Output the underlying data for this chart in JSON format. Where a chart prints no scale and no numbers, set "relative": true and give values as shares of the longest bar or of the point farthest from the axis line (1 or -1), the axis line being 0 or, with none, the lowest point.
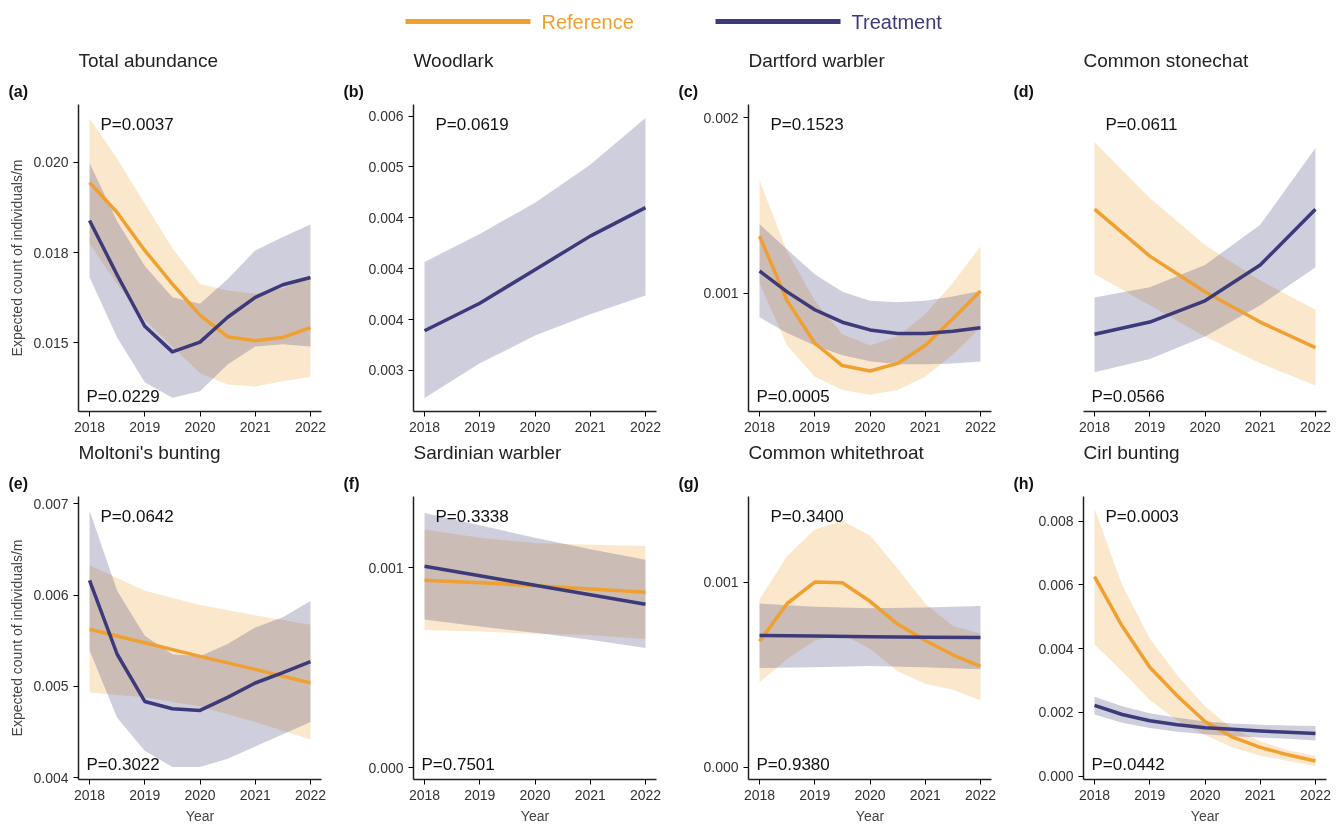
{
  "chart_data": [
    {
      "type": "line",
      "title": "Total abundance",
      "ylabel": "Expected count of individuals/m",
      "legend": "top",
      "annotations": [
        "(a)",
        "P=0.0037",
        "P=0.0229"
      ],
      "x": [
        2018,
        2018.5,
        2019,
        2019.5,
        2020,
        2020.5,
        2021,
        2021.5,
        2022
      ],
      "xlim": [
        2017.8,
        2022.2
      ],
      "xticks": [
        2018,
        2019,
        2020,
        2021,
        2022
      ],
      "ylim": [
        0.0131,
        0.0216
      ],
      "yticks": [
        {
          "value": 0.015,
          "label": "0.015"
        },
        {
          "value": 0.0175,
          "label": "0.018"
        },
        {
          "value": 0.02,
          "label": "0.020"
        }
      ],
      "series": [
        {
          "name": "Reference",
          "color": "#f0a030",
          "values": [
            0.01944,
            0.01861,
            0.01756,
            0.01663,
            0.01577,
            0.01517,
            0.01506,
            0.01515,
            0.01542
          ],
          "lower": [
            0.01775,
            0.01663,
            0.01564,
            0.0149,
            0.01416,
            0.01385,
            0.01379,
            0.01394,
            0.01406
          ],
          "upper": [
            0.02121,
            0.0201,
            0.01886,
            0.01762,
            0.01663,
            0.01645,
            0.01636,
            0.01651,
            0.01682
          ]
        },
        {
          "name": "Treatment",
          "color": "#3c3a78",
          "values": [
            0.01839,
            0.01688,
            0.01546,
            0.01475,
            0.01502,
            0.01571,
            0.01626,
            0.01661,
            0.01681
          ],
          "lower": [
            0.01682,
            0.01515,
            0.01391,
            0.01348,
            0.01366,
            0.0144,
            0.0149,
            0.01496,
            0.0149
          ],
          "upper": [
            0.01998,
            0.01837,
            0.01713,
            0.01626,
            0.01608,
            0.01676,
            0.01756,
            0.01793,
            0.01828
          ]
        }
      ]
    },
    {
      "type": "line",
      "title": "Woodlark",
      "annotations": [
        "(b)",
        "P=0.0619"
      ],
      "x": [
        2018,
        2019,
        2020,
        2021,
        2022
      ],
      "xlim": [
        2017.8,
        2022.2
      ],
      "xticks": [
        2018,
        2019,
        2020,
        2021,
        2022
      ],
      "ylim": [
        0.002596,
        0.005614
      ],
      "yticks": [
        {
          "value": 0.003,
          "label": "0.003"
        },
        {
          "value": 0.0035,
          "label": "0.004"
        },
        {
          "value": 0.004,
          "label": "0.004"
        },
        {
          "value": 0.0045,
          "label": "0.004"
        },
        {
          "value": 0.005,
          "label": "0.005"
        },
        {
          "value": 0.0055,
          "label": "0.006"
        }
      ],
      "series": [
        {
          "color": "#3c3a78",
          "values": [
            0.00339,
            0.00366,
            0.00399,
            0.00432,
            0.0046
          ],
          "lower": [
            0.002728,
            0.00307,
            0.003342,
            0.003553,
            0.003737
          ],
          "upper": [
            0.004066,
            0.004342,
            0.004649,
            0.005022,
            0.005482
          ]
        }
      ]
    },
    {
      "type": "line",
      "title": "Dartford warbler",
      "annotations": [
        "(c)",
        "P=0.1523",
        "P=0.0005"
      ],
      "x": [
        2018,
        2018.5,
        2019,
        2019.5,
        2020,
        2020.5,
        2021,
        2021.5,
        2022
      ],
      "xlim": [
        2017.8,
        2022.2
      ],
      "xticks": [
        2018,
        2019,
        2020,
        2021,
        2022
      ],
      "ylim": [
        0.000326,
        0.002076
      ],
      "yticks": [
        {
          "value": 0.001,
          "label": "0.001"
        },
        {
          "value": 0.002,
          "label": "0.002"
        }
      ],
      "series": [
        {
          "color": "#f0a030",
          "values": [
            0.001326,
            0.000957,
            0.000715,
            0.000588,
            0.000557,
            0.0006,
            0.000702,
            0.000855,
            0.001013
          ],
          "lower": [
            0.001059,
            0.000702,
            0.000524,
            0.000448,
            0.000422,
            0.000448,
            0.000524,
            0.000651,
            0.000804
          ],
          "upper": [
            0.001644,
            0.001237,
            0.000957,
            0.000766,
            0.000702,
            0.000753,
            0.00088,
            0.001059,
            0.001267
          ]
        },
        {
          "color": "#3c3a78",
          "values": [
            0.001127,
            0.001008,
            0.000906,
            0.000835,
            0.000791,
            0.000771,
            0.000771,
            0.000784,
            0.000804
          ],
          "lower": [
            0.000863,
            0.000774,
            0.000702,
            0.000646,
            0.000613,
            0.000595,
            0.000595,
            0.0006,
            0.000611
          ],
          "upper": [
            0.001394,
            0.001249,
            0.001109,
            0.001008,
            0.000957,
            0.000949,
            0.000957,
            0.000982,
            0.001013
          ]
        }
      ]
    },
    {
      "type": "line",
      "title": "Common stonechat",
      "relative": true,
      "annotations": [
        "(d)",
        "P=0.0611",
        "P=0.0566"
      ],
      "x": [
        2018,
        2019,
        2020,
        2021,
        2022
      ],
      "xlim": [
        2017.8,
        2022.2
      ],
      "xticks": [
        2018,
        2019,
        2020,
        2021,
        2022
      ],
      "series": [
        {
          "color": "#f0a030",
          "values": [
            1.0,
            0.768,
            0.592,
            0.442,
            0.316
          ],
          "lower": [
            0.68,
            0.525,
            0.371,
            0.238,
            0.128
          ],
          "upper": [
            1.331,
            1.055,
            0.823,
            0.647,
            0.503
          ]
        },
        {
          "color": "#3c3a78",
          "values": [
            0.382,
            0.442,
            0.547,
            0.724,
            1.0
          ],
          "lower": [
            0.194,
            0.26,
            0.371,
            0.525,
            0.713
          ],
          "upper": [
            0.563,
            0.614,
            0.724,
            0.923,
            1.302
          ]
        }
      ]
    },
    {
      "type": "line",
      "title": "Moltoni's bunting",
      "xlabel": "Year",
      "ylabel": "Expected count of individuals/m",
      "annotations": [
        "(e)",
        "P=0.0642",
        "P=0.3022"
      ],
      "x": [
        2018,
        2018.5,
        2019,
        2019.5,
        2020,
        2020.5,
        2021,
        2021.5,
        2022
      ],
      "xlim": [
        2017.8,
        2022.2
      ],
      "xticks": [
        2018,
        2019,
        2020,
        2021,
        2022
      ],
      "ylim": [
        0.00398,
        0.00708
      ],
      "yticks": [
        {
          "value": 0.004,
          "label": "0.004"
        },
        {
          "value": 0.005,
          "label": "0.005"
        },
        {
          "value": 0.006,
          "label": "0.006"
        },
        {
          "value": 0.007,
          "label": "0.007"
        }
      ],
      "series": [
        {
          "color": "#f0a030",
          "x": [
            2018,
            2019,
            2020,
            2021,
            2022
          ],
          "values": [
            0.005626,
            0.005478,
            0.005329,
            0.005186,
            0.005037
          ],
          "lower": [
            0.004934,
            0.00488,
            0.004781,
            0.004611,
            0.004418
          ],
          "upper": [
            0.006326,
            0.006048,
            0.005891,
            0.005778,
            0.005675
          ]
        },
        {
          "color": "#3c3a78",
          "values": [
            0.00616,
            0.005352,
            0.004835,
            0.004755,
            0.004737,
            0.00488,
            0.005037,
            0.00515,
            0.005271
          ],
          "lower": [
            0.005397,
            0.004656,
            0.004296,
            0.004117,
            0.004117,
            0.004207,
            0.004341,
            0.004476,
            0.004611
          ],
          "upper": [
            0.006924,
            0.006048,
            0.005554,
            0.005352,
            0.005329,
            0.005464,
            0.005644,
            0.005756,
            0.005936
          ]
        }
      ]
    },
    {
      "type": "line",
      "title": "Sardinian warbler",
      "xlabel": "Year",
      "annotations": [
        "(f)",
        "P=0.3338",
        "P=0.7501"
      ],
      "x": [
        2018,
        2019,
        2020,
        2021,
        2022
      ],
      "xlim": [
        2017.8,
        2022.2
      ],
      "xticks": [
        2018,
        2019,
        2020,
        2021,
        2022
      ],
      "ylim": [
        -5.78e-05,
        0.001357
      ],
      "yticks": [
        {
          "value": 0,
          "label": "0.000"
        },
        {
          "value": 0.001,
          "label": "0.001"
        }
      ],
      "series": [
        {
          "color": "#f0a030",
          "values": [
            0.000938,
            0.000926,
            0.000911,
            0.000895,
            0.000878
          ],
          "lower": [
            0.00069,
            0.000682,
            0.000671,
            0.000665,
            0.000645
          ],
          "upper": [
            0.001192,
            0.001151,
            0.001124,
            0.001116,
            0.00111
          ]
        },
        {
          "color": "#3c3a78",
          "values": [
            0.001008,
            0.000961,
            0.000913,
            0.000866,
            0.000818
          ],
          "lower": [
            0.000742,
            0.000707,
            0.000676,
            0.000641,
            0.000599
          ],
          "upper": [
            0.001275,
            0.001213,
            0.001151,
            0.001093,
            0.001041
          ]
        }
      ]
    },
    {
      "type": "line",
      "title": "Common whitethroat",
      "xlabel": "Year",
      "annotations": [
        "(g)",
        "P=0.3400",
        "P=0.9380"
      ],
      "x": [
        2018,
        2018.5,
        2019,
        2019.5,
        2020,
        2020.5,
        2021,
        2021.5,
        2022
      ],
      "xlim": [
        2017.8,
        2022.2
      ],
      "xticks": [
        2018,
        2019,
        2020,
        2021,
        2022
      ],
      "ylim": [
        -6.67e-05,
        0.001462
      ],
      "yticks": [
        {
          "value": 0,
          "label": "0.000"
        },
        {
          "value": 0.001,
          "label": "0.001"
        }
      ],
      "series": [
        {
          "color": "#f0a030",
          "values": [
            0.00068,
            0.000884,
            0.001,
            0.000996,
            0.000896,
            0.000773,
            0.000684,
            0.000607,
            0.000544
          ],
          "lower": [
            0.000458,
            0.000584,
            0.000684,
            0.000718,
            0.00064,
            0.000518,
            0.000451,
            0.000418,
            0.000362
          ],
          "upper": [
            0.000907,
            0.00114,
            0.001284,
            0.001329,
            0.001251,
            0.001073,
            0.000884,
            0.000762,
            0.000722
          ]
        },
        {
          "color": "#3c3a78",
          "x": [
            2018,
            2019,
            2020,
            2021,
            2022
          ],
          "values": [
            0.000711,
            0.000709,
            0.000704,
            0.000702,
            0.0007
          ],
          "lower": [
            0.000536,
            0.00054,
            0.000547,
            0.00054,
            0.000529
          ],
          "upper": [
            0.000884,
            0.000867,
            0.000858,
            0.000862,
            0.000871
          ]
        }
      ]
    },
    {
      "type": "line",
      "title": "Cirl bunting",
      "xlabel": "Year",
      "annotations": [
        "(h)",
        "P=0.0003",
        "P=0.0442"
      ],
      "x": [
        2018,
        2018.5,
        2019,
        2019.5,
        2020,
        2020.5,
        2021,
        2021.5,
        2022
      ],
      "xlim": [
        2017.8,
        2022.2
      ],
      "xticks": [
        2018,
        2019,
        2020,
        2021,
        2022
      ],
      "ylim": [
        -0.000103,
        0.008774
      ],
      "yticks": [
        {
          "value": 0,
          "label": "0.000"
        },
        {
          "value": 0.002,
          "label": "0.002"
        },
        {
          "value": 0.004,
          "label": "0.004"
        },
        {
          "value": 0.006,
          "label": "0.006"
        },
        {
          "value": 0.008,
          "label": "0.008"
        }
      ],
      "series": [
        {
          "color": "#f0a030",
          "values": [
            0.006258,
            0.00471,
            0.003419,
            0.002516,
            0.001716,
            0.001226,
            0.000903,
            0.000671,
            0.000477
          ],
          "lower": [
            0.004129,
            0.00329,
            0.002387,
            0.001742,
            0.00129,
            0.000903,
            0.000645,
            0.000477,
            0.000323
          ],
          "upper": [
            0.008387,
            0.006,
            0.004323,
            0.003161,
            0.002194,
            0.001484,
            0.001097,
            0.000813,
            0.000645
          ]
        },
        {
          "color": "#3c3a78",
          "values": [
            0.00222,
            0.001935,
            0.001742,
            0.001613,
            0.001523,
            0.001471,
            0.001419,
            0.001381,
            0.001342
          ],
          "lower": [
            0.001935,
            0.001677,
            0.00151,
            0.001394,
            0.001316,
            0.001252,
            0.001213,
            0.001174,
            0.001123
          ],
          "upper": [
            0.00249,
            0.002194,
            0.001974,
            0.001832,
            0.001716,
            0.001652,
            0.001613,
            0.001587,
            0.001574
          ]
        }
      ]
    }
  ]
}
